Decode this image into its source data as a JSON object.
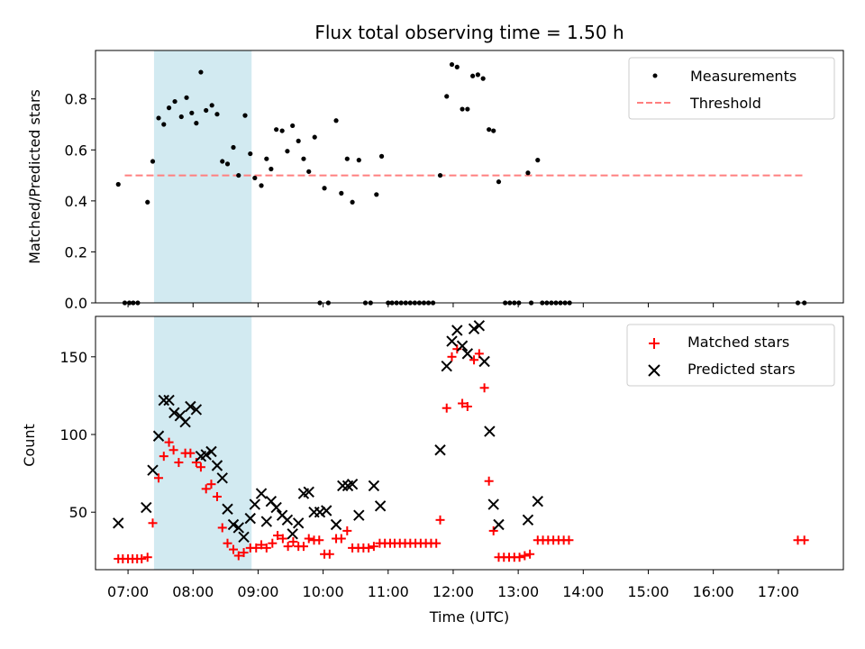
{
  "chart_data": [
    {
      "type": "scatter",
      "title": "Flux total observing time = 1.50 h",
      "xlabel": "",
      "ylabel": "Matched/Predicted stars",
      "ylim": [
        0,
        0.99
      ],
      "xlim_hours": [
        6.5,
        18.0
      ],
      "yticks": [
        "0.0",
        "0.2",
        "0.4",
        "0.6",
        "0.8"
      ],
      "ytick_values": [
        0,
        0.2,
        0.4,
        0.6,
        0.8
      ],
      "shaded_region_hours": [
        7.4,
        8.9
      ],
      "shade_color": "#add8e6",
      "legend_position": "upper right",
      "legend": [
        {
          "label": "Measurements",
          "marker": "dot",
          "color": "#000000"
        },
        {
          "label": "Threshold",
          "marker": "dashed-line",
          "color": "#ff7f7f"
        }
      ],
      "threshold": {
        "value": 0.5,
        "from_hour": 6.95,
        "to_hour": 17.4
      },
      "series": [
        {
          "name": "Measurements",
          "color": "#000000",
          "points": [
            [
              6.85,
              0.465
            ],
            [
              6.95,
              0
            ],
            [
              7.02,
              0
            ],
            [
              7.08,
              0
            ],
            [
              7.15,
              0
            ],
            [
              7.3,
              0.395
            ],
            [
              7.38,
              0.555
            ],
            [
              7.47,
              0.725
            ],
            [
              7.55,
              0.7
            ],
            [
              7.63,
              0.765
            ],
            [
              7.72,
              0.79
            ],
            [
              7.82,
              0.73
            ],
            [
              7.9,
              0.805
            ],
            [
              7.98,
              0.745
            ],
            [
              8.05,
              0.705
            ],
            [
              8.12,
              0.905
            ],
            [
              8.2,
              0.755
            ],
            [
              8.29,
              0.775
            ],
            [
              8.37,
              0.74
            ],
            [
              8.45,
              0.555
            ],
            [
              8.53,
              0.545
            ],
            [
              8.62,
              0.61
            ],
            [
              8.7,
              0.5
            ],
            [
              8.8,
              0.735
            ],
            [
              8.88,
              0.585
            ],
            [
              8.95,
              0.49
            ],
            [
              9.05,
              0.46
            ],
            [
              9.13,
              0.565
            ],
            [
              9.2,
              0.525
            ],
            [
              9.28,
              0.68
            ],
            [
              9.37,
              0.675
            ],
            [
              9.45,
              0.595
            ],
            [
              9.53,
              0.695
            ],
            [
              9.62,
              0.635
            ],
            [
              9.7,
              0.565
            ],
            [
              9.78,
              0.515
            ],
            [
              9.87,
              0.65
            ],
            [
              9.95,
              0
            ],
            [
              10.02,
              0.45
            ],
            [
              10.08,
              0
            ],
            [
              10.2,
              0.715
            ],
            [
              10.28,
              0.43
            ],
            [
              10.37,
              0.565
            ],
            [
              10.45,
              0.395
            ],
            [
              10.55,
              0.56
            ],
            [
              10.65,
              0
            ],
            [
              10.73,
              0
            ],
            [
              10.82,
              0.425
            ],
            [
              10.9,
              0.575
            ],
            [
              11.0,
              0
            ],
            [
              11.06,
              0
            ],
            [
              11.13,
              0
            ],
            [
              11.2,
              0
            ],
            [
              11.27,
              0
            ],
            [
              11.34,
              0
            ],
            [
              11.41,
              0
            ],
            [
              11.48,
              0
            ],
            [
              11.55,
              0
            ],
            [
              11.62,
              0
            ],
            [
              11.69,
              0
            ],
            [
              11.8,
              0.5
            ],
            [
              11.9,
              0.81
            ],
            [
              11.98,
              0.935
            ],
            [
              12.06,
              0.925
            ],
            [
              12.14,
              0.76
            ],
            [
              12.22,
              0.76
            ],
            [
              12.3,
              0.89
            ],
            [
              12.38,
              0.895
            ],
            [
              12.46,
              0.88
            ],
            [
              12.55,
              0.68
            ],
            [
              12.62,
              0.675
            ],
            [
              12.7,
              0.475
            ],
            [
              12.8,
              0
            ],
            [
              12.87,
              0
            ],
            [
              12.94,
              0
            ],
            [
              13.01,
              0
            ],
            [
              13.15,
              0.51
            ],
            [
              13.2,
              0
            ],
            [
              13.3,
              0.56
            ],
            [
              13.37,
              0
            ],
            [
              13.44,
              0
            ],
            [
              13.51,
              0
            ],
            [
              13.58,
              0
            ],
            [
              13.65,
              0
            ],
            [
              13.72,
              0
            ],
            [
              13.79,
              0
            ],
            [
              17.3,
              0
            ],
            [
              17.4,
              0
            ]
          ]
        }
      ]
    },
    {
      "type": "scatter",
      "title": "",
      "xlabel": "Time (UTC)",
      "ylabel": "Count",
      "ylim": [
        13,
        176
      ],
      "xlim_hours": [
        6.5,
        18.0
      ],
      "yticks": [
        "50",
        "100",
        "150"
      ],
      "ytick_values": [
        50,
        100,
        150
      ],
      "xticks": [
        "07:00",
        "08:00",
        "09:00",
        "10:00",
        "11:00",
        "12:00",
        "13:00",
        "14:00",
        "15:00",
        "16:00",
        "17:00"
      ],
      "xtick_values": [
        7,
        8,
        9,
        10,
        11,
        12,
        13,
        14,
        15,
        16,
        17
      ],
      "shaded_region_hours": [
        7.4,
        8.9
      ],
      "shade_color": "#add8e6",
      "legend_position": "upper right",
      "legend": [
        {
          "label": "Matched stars",
          "marker": "plus",
          "color": "#ff0000"
        },
        {
          "label": "Predicted stars",
          "marker": "x",
          "color": "#000000"
        }
      ],
      "series": [
        {
          "name": "Matched stars",
          "color": "#ff0000",
          "marker": "plus",
          "points": [
            [
              6.85,
              20
            ],
            [
              6.92,
              20
            ],
            [
              7.0,
              20
            ],
            [
              7.07,
              20
            ],
            [
              7.14,
              20
            ],
            [
              7.21,
              20
            ],
            [
              7.3,
              21
            ],
            [
              7.38,
              43
            ],
            [
              7.47,
              72
            ],
            [
              7.55,
              86
            ],
            [
              7.63,
              95
            ],
            [
              7.7,
              90
            ],
            [
              7.78,
              82
            ],
            [
              7.88,
              88
            ],
            [
              7.96,
              88
            ],
            [
              8.05,
              82
            ],
            [
              8.12,
              79
            ],
            [
              8.2,
              65
            ],
            [
              8.28,
              68
            ],
            [
              8.37,
              60
            ],
            [
              8.45,
              40
            ],
            [
              8.53,
              30
            ],
            [
              8.62,
              26
            ],
            [
              8.7,
              22
            ],
            [
              8.78,
              24
            ],
            [
              8.88,
              27
            ],
            [
              8.97,
              27
            ],
            [
              9.05,
              29
            ],
            [
              9.13,
              27
            ],
            [
              9.22,
              30
            ],
            [
              9.3,
              35
            ],
            [
              9.38,
              33
            ],
            [
              9.46,
              28
            ],
            [
              9.54,
              31
            ],
            [
              9.62,
              28
            ],
            [
              9.7,
              28
            ],
            [
              9.78,
              33
            ],
            [
              9.86,
              32
            ],
            [
              9.94,
              32
            ],
            [
              10.02,
              23
            ],
            [
              10.1,
              23
            ],
            [
              10.2,
              33
            ],
            [
              10.28,
              33
            ],
            [
              10.37,
              38
            ],
            [
              10.45,
              27
            ],
            [
              10.54,
              27
            ],
            [
              10.62,
              27
            ],
            [
              10.7,
              27
            ],
            [
              10.78,
              28
            ],
            [
              10.87,
              30
            ],
            [
              10.95,
              30
            ],
            [
              11.03,
              30
            ],
            [
              11.1,
              30
            ],
            [
              11.18,
              30
            ],
            [
              11.26,
              30
            ],
            [
              11.34,
              30
            ],
            [
              11.42,
              30
            ],
            [
              11.5,
              30
            ],
            [
              11.58,
              30
            ],
            [
              11.66,
              30
            ],
            [
              11.74,
              30
            ],
            [
              11.8,
              45
            ],
            [
              11.9,
              117
            ],
            [
              11.98,
              150
            ],
            [
              12.06,
              155
            ],
            [
              12.14,
              120
            ],
            [
              12.22,
              118
            ],
            [
              12.32,
              148
            ],
            [
              12.4,
              152
            ],
            [
              12.48,
              130
            ],
            [
              12.55,
              70
            ],
            [
              12.62,
              38
            ],
            [
              12.7,
              21
            ],
            [
              12.78,
              21
            ],
            [
              12.86,
              21
            ],
            [
              12.94,
              21
            ],
            [
              13.02,
              21
            ],
            [
              13.1,
              22
            ],
            [
              13.18,
              23
            ],
            [
              13.3,
              32
            ],
            [
              13.38,
              32
            ],
            [
              13.46,
              32
            ],
            [
              13.54,
              32
            ],
            [
              13.62,
              32
            ],
            [
              13.7,
              32
            ],
            [
              13.78,
              32
            ],
            [
              17.3,
              32
            ],
            [
              17.4,
              32
            ]
          ]
        },
        {
          "name": "Predicted stars",
          "color": "#000000",
          "marker": "x",
          "points": [
            [
              6.85,
              43
            ],
            [
              7.28,
              53
            ],
            [
              7.38,
              77
            ],
            [
              7.47,
              99
            ],
            [
              7.55,
              122
            ],
            [
              7.63,
              122
            ],
            [
              7.71,
              114
            ],
            [
              7.8,
              112
            ],
            [
              7.88,
              108
            ],
            [
              7.96,
              118
            ],
            [
              8.05,
              116
            ],
            [
              8.12,
              86
            ],
            [
              8.2,
              87
            ],
            [
              8.28,
              89
            ],
            [
              8.37,
              80
            ],
            [
              8.45,
              72
            ],
            [
              8.53,
              52
            ],
            [
              8.62,
              42
            ],
            [
              8.7,
              40
            ],
            [
              8.78,
              34
            ],
            [
              8.88,
              46
            ],
            [
              8.95,
              55
            ],
            [
              9.05,
              62
            ],
            [
              9.13,
              44
            ],
            [
              9.2,
              57
            ],
            [
              9.28,
              53
            ],
            [
              9.37,
              48
            ],
            [
              9.45,
              45
            ],
            [
              9.53,
              36
            ],
            [
              9.62,
              43
            ],
            [
              9.7,
              62
            ],
            [
              9.78,
              63
            ],
            [
              9.86,
              50
            ],
            [
              9.95,
              50
            ],
            [
              10.05,
              51
            ],
            [
              10.2,
              42
            ],
            [
              10.3,
              67
            ],
            [
              10.38,
              67
            ],
            [
              10.45,
              68
            ],
            [
              10.55,
              48
            ],
            [
              10.78,
              67
            ],
            [
              10.88,
              54
            ],
            [
              11.8,
              90
            ],
            [
              11.9,
              144
            ],
            [
              11.98,
              160
            ],
            [
              12.06,
              167
            ],
            [
              12.14,
              157
            ],
            [
              12.22,
              152
            ],
            [
              12.32,
              168
            ],
            [
              12.4,
              170
            ],
            [
              12.48,
              147
            ],
            [
              12.56,
              102
            ],
            [
              12.62,
              55
            ],
            [
              12.7,
              42
            ],
            [
              13.15,
              45
            ],
            [
              13.3,
              57
            ]
          ]
        }
      ]
    }
  ]
}
